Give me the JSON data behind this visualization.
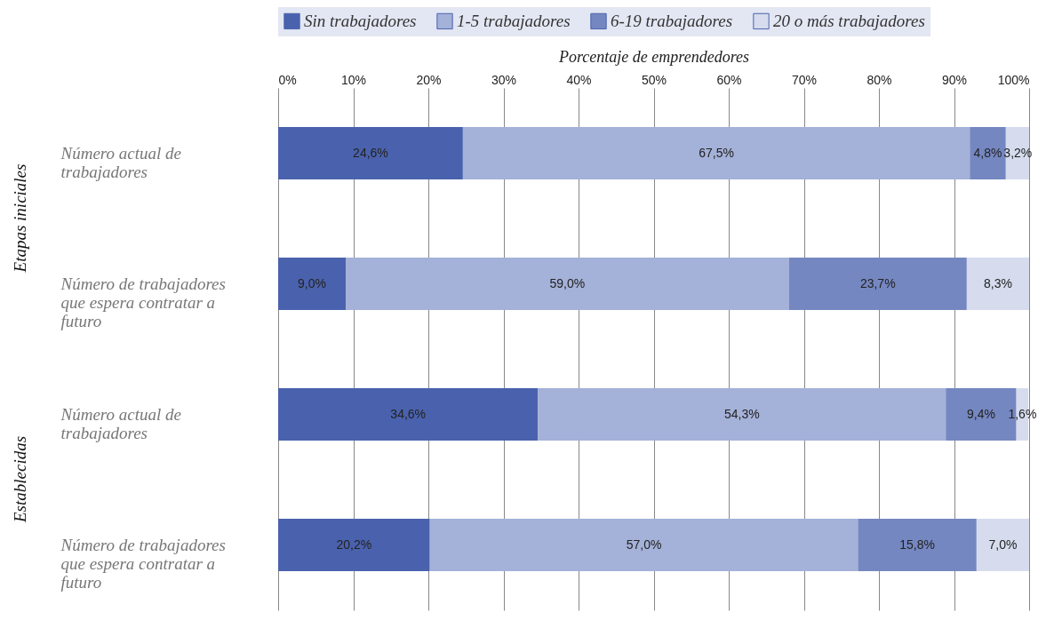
{
  "chart_data": {
    "type": "bar",
    "orientation": "horizontal",
    "stacked": true,
    "xlabel": "Porcentaje de emprendedores",
    "categories": [
      "Número actual de trabajadores",
      "Número de trabajadores que espera contratar a futuro",
      "Número actual de trabajadores",
      "Número de trabajadores que espera contratar a futuro"
    ],
    "annotations": [
      "Etapas iniciales",
      "Establecidas"
    ],
    "series": [
      {
        "name": "Sin trabajadores",
        "color": "#4a62ad",
        "values": [
          24.6,
          9.0,
          34.6,
          20.2
        ],
        "value_labels": [
          "24,6%",
          "9,0%",
          "34,6%",
          "20,2%"
        ]
      },
      {
        "name": "1-5 trabajadores",
        "color": "#a4b1d8",
        "values": [
          67.5,
          59.0,
          54.3,
          57.0
        ],
        "value_labels": [
          "67,5%",
          "59,0%",
          "54,3%",
          "57,0%"
        ]
      },
      {
        "name": "6-19 trabajadores",
        "color": "#7587c1",
        "values": [
          4.8,
          23.7,
          9.4,
          15.8
        ],
        "value_labels": [
          "4,8%",
          "23,7%",
          "9,4%",
          "15,8%"
        ]
      },
      {
        "name": "20 o más trabajadores",
        "color": "#d6dcee",
        "values": [
          3.2,
          8.3,
          1.6,
          7.0
        ],
        "value_labels": [
          "3,2%",
          "8,3%",
          "1,6%",
          "7,0%"
        ]
      }
    ],
    "xlim": [
      0,
      100
    ],
    "xticks": [
      {
        "value": 0,
        "label": "0%"
      },
      {
        "value": 10,
        "label": "10%"
      },
      {
        "value": 20,
        "label": "20%"
      },
      {
        "value": 30,
        "label": "30%"
      },
      {
        "value": 40,
        "label": "40%"
      },
      {
        "value": 50,
        "label": "50%"
      },
      {
        "value": 60,
        "label": "60%"
      },
      {
        "value": 70,
        "label": "70%"
      },
      {
        "value": 80,
        "label": "80%"
      },
      {
        "value": 90,
        "label": "90%"
      },
      {
        "value": 100,
        "label": "100%"
      }
    ],
    "grid": "x",
    "legend": "top"
  }
}
